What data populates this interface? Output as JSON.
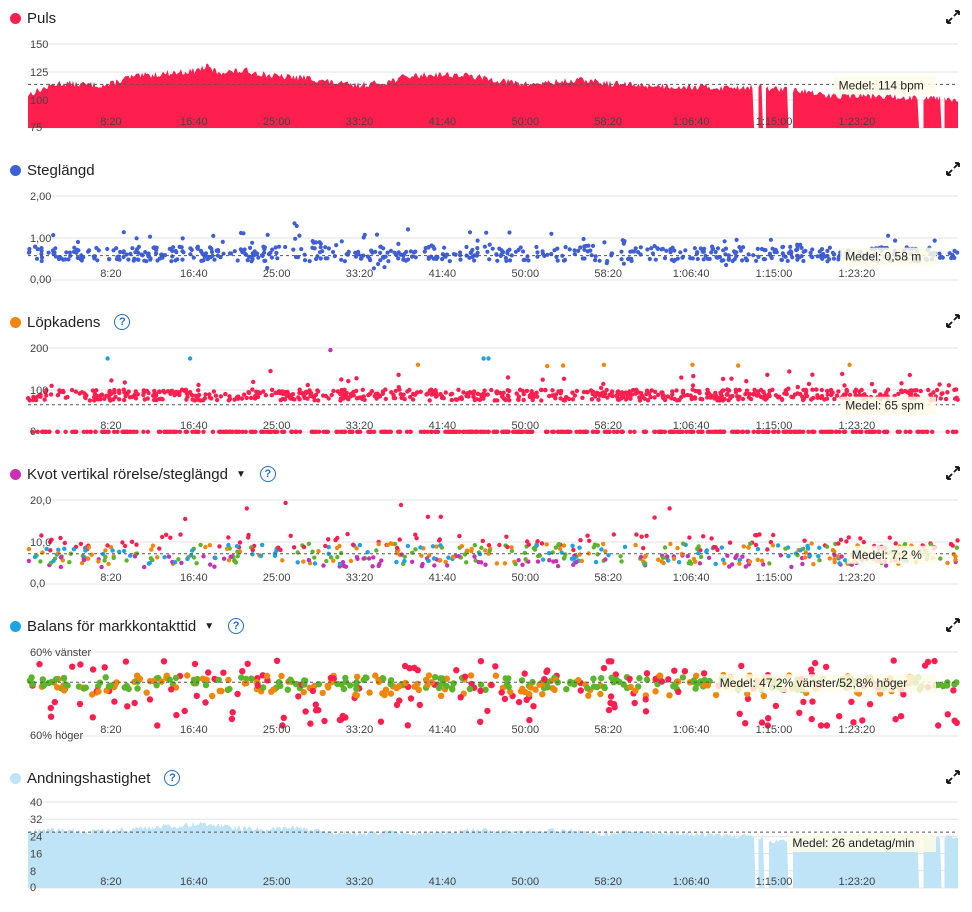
{
  "chart_data": [
    {
      "type": "area",
      "title": "Puls",
      "color": "#ff1f4e",
      "x_ticks": [
        "8:20",
        "16:40",
        "25:00",
        "33:20",
        "41:40",
        "50:00",
        "58:20",
        "1:06:40",
        "1:15:00",
        "1:23:20"
      ],
      "y_ticks": [
        "150",
        "125",
        "100",
        "75"
      ],
      "ylim": [
        75,
        150
      ],
      "average_label": "Medel: 114 bpm",
      "average_value": 114,
      "profile": [
        [
          0,
          105
        ],
        [
          3,
          115
        ],
        [
          8,
          113
        ],
        [
          10,
          120
        ],
        [
          14,
          124
        ],
        [
          16.7,
          126
        ],
        [
          18,
          130
        ],
        [
          19,
          125
        ],
        [
          22,
          126
        ],
        [
          25,
          121
        ],
        [
          28,
          120
        ],
        [
          31,
          115
        ],
        [
          33,
          113
        ],
        [
          36,
          116
        ],
        [
          38,
          121
        ],
        [
          41,
          123
        ],
        [
          44,
          122
        ],
        [
          47,
          118
        ],
        [
          50,
          114
        ],
        [
          53,
          116
        ],
        [
          56,
          118
        ],
        [
          58,
          115
        ],
        [
          62,
          113
        ],
        [
          66,
          112
        ],
        [
          70,
          111
        ],
        [
          73,
          112
        ],
        [
          75,
          110
        ],
        [
          78,
          108
        ],
        [
          80,
          104
        ],
        [
          84,
          104
        ],
        [
          88,
          102
        ],
        [
          91,
          103
        ],
        [
          93,
          101
        ]
      ],
      "gaps": [
        [
          72.9,
          73.3
        ],
        [
          73.8,
          74.1
        ],
        [
          76.4,
          76.8
        ],
        [
          89.5,
          89.9
        ],
        [
          91.8,
          92.1
        ]
      ]
    },
    {
      "type": "scatter",
      "title": "Steglängd",
      "color": "#3f5fd6",
      "x_ticks": [
        "8:20",
        "16:40",
        "25:00",
        "33:20",
        "41:40",
        "50:00",
        "58:20",
        "1:06:40",
        "1:15:00",
        "1:23:20"
      ],
      "y_ticks": [
        "2,00",
        "1,00",
        "0,00"
      ],
      "ylim": [
        0,
        2
      ],
      "average_label": "Medel: 0,58 m",
      "average_value": 0.58,
      "seed": 7
    },
    {
      "type": "scatter",
      "title": "Löpkadens",
      "color": "#ff1f4e",
      "legend_color": "#f0870a",
      "x_ticks": [
        "8:20",
        "16:40",
        "25:00",
        "33:20",
        "41:40",
        "50:00",
        "58:20",
        "1:06:40",
        "1:15:00",
        "1:23:20"
      ],
      "y_ticks": [
        "200",
        "100",
        "0"
      ],
      "ylim": [
        0,
        200
      ],
      "average_label": "Medel: 65 spm",
      "average_value": 65,
      "seed": 21
    },
    {
      "type": "scatter",
      "title": "Kvot vertikal rörelse/steglängd",
      "color": "#c930b5",
      "x_ticks": [
        "8:20",
        "16:40",
        "25:00",
        "33:20",
        "41:40",
        "50:00",
        "58:20",
        "1:06:40",
        "1:15:00",
        "1:23:20"
      ],
      "y_ticks": [
        "20,0",
        "10,0",
        "0,0"
      ],
      "ylim": [
        0,
        20
      ],
      "average_label": "Medel: 7,2 %",
      "average_value": 7.2,
      "seed": 33
    },
    {
      "type": "scatter",
      "title": "Balans för markkontakttid",
      "color": "#1ca3e6",
      "x_ticks": [
        "8:20",
        "16:40",
        "25:00",
        "33:20",
        "41:40",
        "50:00",
        "58:20",
        "1:06:40",
        "1:15:00",
        "1:23:20"
      ],
      "y_ticks": [
        "60% vänster",
        "60% höger"
      ],
      "ylim": [
        -10,
        10
      ],
      "average_label": "Medel: 47,2% vänster/52,8% höger",
      "average_value": 2.8,
      "seed": 55
    },
    {
      "type": "area",
      "title": "Andningshastighet",
      "color": "#bfe3f7",
      "x_ticks": [
        "8:20",
        "16:40",
        "25:00",
        "33:20",
        "41:40",
        "50:00",
        "58:20",
        "1:06:40",
        "1:15:00",
        "1:23:20"
      ],
      "y_ticks": [
        "40",
        "32",
        "24",
        "16",
        "8",
        "0"
      ],
      "ylim": [
        0,
        40
      ],
      "average_label": "Medel: 26 andetag/min",
      "average_value": 26,
      "profile": [
        [
          0,
          26
        ],
        [
          3,
          27
        ],
        [
          6,
          26
        ],
        [
          9,
          27
        ],
        [
          12,
          28
        ],
        [
          15,
          29
        ],
        [
          18,
          30
        ],
        [
          21,
          28
        ],
        [
          24,
          27
        ],
        [
          27,
          28
        ],
        [
          30,
          26
        ],
        [
          33,
          25
        ],
        [
          36,
          26
        ],
        [
          39,
          25
        ],
        [
          42,
          26
        ],
        [
          45,
          27
        ],
        [
          48,
          26
        ],
        [
          51,
          26
        ],
        [
          54,
          27
        ],
        [
          57,
          25
        ],
        [
          60,
          26
        ],
        [
          64,
          25
        ],
        [
          68,
          25
        ],
        [
          72,
          24
        ],
        [
          75,
          22
        ],
        [
          78,
          24
        ],
        [
          81,
          23
        ],
        [
          84,
          24
        ],
        [
          87,
          23
        ],
        [
          90,
          23
        ],
        [
          93,
          24
        ]
      ],
      "gaps": [
        [
          73.0,
          73.4
        ],
        [
          74.0,
          74.4
        ],
        [
          76.4,
          76.8
        ],
        [
          89.5,
          90.0
        ],
        [
          91.8,
          92.1
        ]
      ]
    }
  ]
}
